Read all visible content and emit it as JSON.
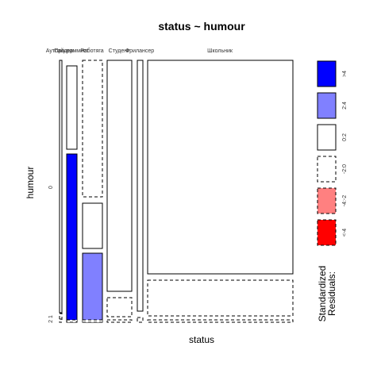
{
  "chart_data": {
    "type": "mosaic",
    "title": "status ~ humour",
    "xlabel": "status",
    "ylabel": "humour",
    "status_levels": [
      "Аутсайдер",
      "Программист",
      "Работяга",
      "Студент",
      "Фрилансер",
      "Школьник"
    ],
    "humour_levels": [
      "0",
      "1",
      "2"
    ],
    "humour_axis_labels": [
      "0",
      "2 1"
    ],
    "cells": [
      {
        "status": "Аутсайдер",
        "humour": "0",
        "fill": "white",
        "dash": false
      },
      {
        "status": "Аутсайдер",
        "humour": "1",
        "fill": "white",
        "dash": true
      },
      {
        "status": "Аутсайдер",
        "humour": "2",
        "fill": "white",
        "dash": true
      },
      {
        "status": "Программист",
        "humour": "0",
        "fill": "white",
        "dash": false
      },
      {
        "status": "Программист",
        "humour": "0",
        "fill": "blue",
        "dash": false
      },
      {
        "status": "Программист",
        "humour": "2",
        "fill": "white",
        "dash": true
      },
      {
        "status": "Работяга",
        "humour": "0",
        "fill": "white",
        "dash": true
      },
      {
        "status": "Работяга",
        "humour": "0",
        "fill": "white",
        "dash": false
      },
      {
        "status": "Работяга",
        "humour": "1",
        "fill": "lightblue",
        "dash": false
      },
      {
        "status": "Работяга",
        "humour": "2",
        "fill": "white",
        "dash": true
      },
      {
        "status": "Студент",
        "humour": "0",
        "fill": "white",
        "dash": false
      },
      {
        "status": "Студент",
        "humour": "1",
        "fill": "white",
        "dash": true
      },
      {
        "status": "Студент",
        "humour": "2",
        "fill": "white",
        "dash": true
      },
      {
        "status": "Фрилансер",
        "humour": "0",
        "fill": "white",
        "dash": false
      },
      {
        "status": "Фрилансер",
        "humour": "2",
        "fill": "white",
        "dash": true
      },
      {
        "status": "Школьник",
        "humour": "0",
        "fill": "white",
        "dash": false
      },
      {
        "status": "Школьник",
        "humour": "1",
        "fill": "white",
        "dash": true
      },
      {
        "status": "Школьник",
        "humour": "2",
        "fill": "white",
        "dash": true
      }
    ],
    "legend": {
      "title": "Standardized\nResiduals:",
      "entries": [
        {
          "label": ">4",
          "color": "#0000ff",
          "dash": false
        },
        {
          "label": "2:4",
          "color": "#8080ff",
          "dash": false
        },
        {
          "label": "0:2",
          "color": "#ffffff",
          "dash": false
        },
        {
          "label": "-2:0",
          "color": "#ffffff",
          "dash": true
        },
        {
          "label": "-4:-2",
          "color": "#ff8080",
          "dash": true
        },
        {
          "label": "<-4",
          "color": "#ff0000",
          "dash": true
        }
      ]
    }
  }
}
